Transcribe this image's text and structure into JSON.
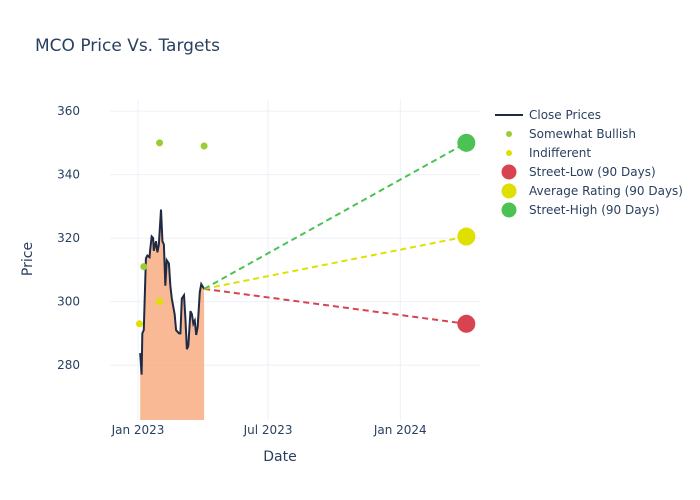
{
  "chart_data": {
    "type": "line",
    "title": "MCO Price Vs. Targets",
    "xlabel": "Date",
    "ylabel": "Price",
    "xlim": [
      "2022-11-23",
      "2024-04-21"
    ],
    "ylim": [
      262.7,
      363.5
    ],
    "x_ticks": [
      {
        "date": "2023-01-01",
        "label": "Jan 2023"
      },
      {
        "date": "2023-07-01",
        "label": "Jul 2023"
      },
      {
        "date": "2024-01-01",
        "label": "Jan 2024"
      }
    ],
    "y_ticks": [
      280,
      300,
      320,
      340,
      360
    ],
    "grid": true,
    "legend_position": "right",
    "colors": {
      "close": "#1f2a44",
      "fill": "#f9a77a",
      "bullish": "#9acd32",
      "indifferent": "#e0e000",
      "low": "#d9434f",
      "avg": "#e0e000",
      "high": "#4cc154"
    },
    "close_prices": {
      "name": "Close Prices",
      "x": [
        "2023-01-04",
        "2023-01-06",
        "2023-01-07",
        "2023-01-09",
        "2023-01-12",
        "2023-01-14",
        "2023-01-17",
        "2023-01-18",
        "2023-01-20",
        "2023-01-22",
        "2023-01-23",
        "2023-01-26",
        "2023-01-28",
        "2023-01-30",
        "2023-02-02",
        "2023-02-04",
        "2023-02-06",
        "2023-02-08",
        "2023-02-10",
        "2023-02-13",
        "2023-02-15",
        "2023-02-17",
        "2023-02-21",
        "2023-02-23",
        "2023-02-27",
        "2023-03-01",
        "2023-03-03",
        "2023-03-06",
        "2023-03-08",
        "2023-03-10",
        "2023-03-12",
        "2023-03-15",
        "2023-03-17",
        "2023-03-19",
        "2023-03-21",
        "2023-03-23",
        "2023-03-25",
        "2023-03-28",
        "2023-03-30",
        "2023-04-03"
      ],
      "y": [
        283.8,
        277,
        290,
        291,
        313.6,
        314.5,
        314,
        316.5,
        320.5,
        320,
        316,
        319,
        315.5,
        318,
        329,
        319,
        318,
        305,
        313,
        312,
        305,
        301,
        296,
        291,
        290,
        290,
        301,
        302,
        294.5,
        285,
        286,
        297,
        296,
        293,
        294,
        289.5,
        292,
        303,
        305.5,
        304
      ]
    },
    "ratings": [
      {
        "name": "Somewhat Bullish",
        "color_key": "bullish",
        "points": [
          {
            "x": "2023-01-09",
            "y": 311
          },
          {
            "x": "2023-01-31",
            "y": 350
          },
          {
            "x": "2023-04-03",
            "y": 349
          }
        ]
      },
      {
        "name": "Indifferent",
        "color_key": "indifferent",
        "points": [
          {
            "x": "2023-01-03",
            "y": 293
          },
          {
            "x": "2023-01-31",
            "y": 300
          }
        ]
      }
    ],
    "targets": [
      {
        "name": "Street-Low (90 Days)",
        "color_key": "low",
        "x": "2024-04-02",
        "y": 293
      },
      {
        "name": "Average Rating (90 Days)",
        "color_key": "avg",
        "x": "2024-04-02",
        "y": 320.5
      },
      {
        "name": "Street-High (90 Days)",
        "color_key": "high",
        "x": "2024-04-02",
        "y": 350
      }
    ],
    "target_line_start": {
      "x": "2023-04-03",
      "y": 304
    }
  }
}
